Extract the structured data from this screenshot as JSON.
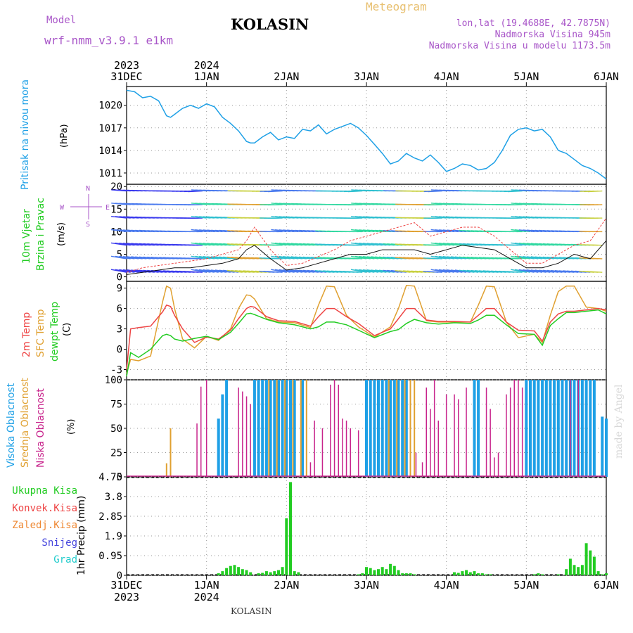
{
  "header": {
    "model_label": "Model",
    "model_name": "wrf-nmm_v3.9.1  e1km",
    "station": "KOLASIN",
    "product": "Meteogram",
    "lonlat": "lon,lat (19.4688E, 42.7875N)",
    "altitude": "Nadmorska Visina 945m",
    "model_altitude": "Nadmorska Visina u modelu 1173.5m",
    "credit": "made by Angel",
    "footer_station": "KOLASIN"
  },
  "colors": {
    "pressure": "#1ea0e6",
    "temp2m": "#ee4444",
    "sfc_temp": "#e0a030",
    "dewpt": "#22cc22",
    "cloud_high": "#1ea0e6",
    "cloud_mid": "#e0a030",
    "cloud_low": "#c8248c",
    "precip": "#22cc22",
    "wind_label": "#22cc22"
  },
  "time_axis": {
    "top": [
      {
        "day": "31DEC",
        "year": "2023"
      },
      {
        "day": "1JAN",
        "year": "2024"
      },
      {
        "day": "2JAN",
        "year": ""
      },
      {
        "day": "3JAN",
        "year": ""
      },
      {
        "day": "4JAN",
        "year": ""
      },
      {
        "day": "5JAN",
        "year": ""
      },
      {
        "day": "6JAN",
        "year": ""
      }
    ]
  },
  "panels": {
    "pressure": {
      "label": "Pritisak na nivou mora",
      "unit": "(hPa)"
    },
    "wind": {
      "label1": "10m Vjetar",
      "label2": "Brzina i Pravac",
      "unit": "(m/s)",
      "compass_n": "N",
      "compass_s": "S",
      "compass_w": "W",
      "compass_e": "E"
    },
    "temp": {
      "label1": "2m Temp",
      "label2": "SFC Temp",
      "label3": "dewpt Temp",
      "unit": "(C)"
    },
    "cloud": {
      "label1": "Visoka Oblacnost",
      "label2": "Srednja Oblacnost",
      "label3": "Niska Oblacnost",
      "unit": "(%)"
    },
    "precip": {
      "legend": [
        "Ukupna Kisa",
        "Konvek.Kisa",
        "Zaledj.Kisa",
        "Snijeg",
        "Grad"
      ],
      "legend_colors": [
        "#22cc22",
        "#ee4444",
        "#ee8833",
        "#4444dd",
        "#22cccc"
      ],
      "unit": "1hr Precip (mm)"
    }
  },
  "chart_data": [
    {
      "type": "line",
      "name": "pressure",
      "x_unit": "days since 31DEC 00UTC",
      "ylim": [
        1009.5,
        1022.5
      ],
      "yticks": [
        "1011",
        "1014",
        "1017",
        "1020"
      ],
      "x": [
        0,
        0.1,
        0.2,
        0.3,
        0.4,
        0.5,
        0.55,
        0.6,
        0.7,
        0.8,
        0.9,
        1.0,
        1.1,
        1.2,
        1.3,
        1.4,
        1.5,
        1.55,
        1.6,
        1.7,
        1.8,
        1.9,
        2.0,
        2.1,
        2.2,
        2.3,
        2.4,
        2.5,
        2.6,
        2.7,
        2.8,
        2.9,
        3.0,
        3.1,
        3.2,
        3.3,
        3.4,
        3.5,
        3.6,
        3.7,
        3.8,
        3.9,
        4.0,
        4.1,
        4.2,
        4.3,
        4.4,
        4.5,
        4.6,
        4.7,
        4.8,
        4.9,
        5.0,
        5.1,
        5.2,
        5.3,
        5.4,
        5.5,
        5.6,
        5.7,
        5.8,
        5.9,
        6.0
      ],
      "series": [
        {
          "name": "pressure",
          "values": [
            1022,
            1021.8,
            1021,
            1021.2,
            1020.6,
            1018.6,
            1018.4,
            1018.8,
            1019.6,
            1020,
            1019.6,
            1020.2,
            1019.8,
            1018.4,
            1017.6,
            1016.6,
            1015.2,
            1015,
            1015,
            1015.8,
            1016.4,
            1015.4,
            1015.8,
            1015.6,
            1016.8,
            1016.6,
            1017.4,
            1016.2,
            1016.8,
            1017.2,
            1017.6,
            1017,
            1016,
            1014.8,
            1013.6,
            1012.2,
            1012.6,
            1013.6,
            1013,
            1012.6,
            1013.4,
            1012.4,
            1011.2,
            1011.6,
            1012.2,
            1012,
            1011.4,
            1011.6,
            1012.4,
            1014,
            1016,
            1016.8,
            1017,
            1016.6,
            1016.8,
            1015.8,
            1014,
            1013.6,
            1012.8,
            1012,
            1011.6,
            1011,
            1010.2
          ]
        }
      ]
    },
    {
      "type": "line",
      "name": "wind",
      "x_unit": "days since 31DEC 00UTC",
      "ylim": [
        -1,
        20.5
      ],
      "yticks": [
        "0",
        "5",
        "10",
        "15",
        "20"
      ],
      "x": [
        0,
        0.2,
        0.4,
        0.6,
        0.8,
        1.0,
        1.2,
        1.4,
        1.5,
        1.6,
        1.8,
        2.0,
        2.2,
        2.4,
        2.6,
        2.8,
        3.0,
        3.2,
        3.4,
        3.6,
        3.8,
        4.0,
        4.2,
        4.4,
        4.6,
        4.8,
        5.0,
        5.2,
        5.4,
        5.6,
        5.8,
        6.0
      ],
      "series": [
        {
          "name": "mean",
          "values": [
            0.5,
            1,
            1.5,
            2,
            2,
            2.5,
            3,
            4,
            6,
            7,
            4,
            1.5,
            2,
            3,
            4,
            5,
            5,
            6,
            6,
            6,
            5,
            6,
            7,
            6.5,
            6,
            4,
            2,
            2,
            3,
            5,
            4,
            8
          ]
        },
        {
          "name": "gust",
          "values": [
            1,
            2,
            2.5,
            3,
            3.5,
            4,
            5,
            6,
            8,
            11,
            6,
            2.5,
            3,
            4.5,
            6,
            8,
            9,
            10,
            11,
            12,
            9,
            10,
            11,
            11,
            9,
            6,
            3,
            3,
            5,
            7,
            8,
            13
          ]
        }
      ]
    },
    {
      "type": "line",
      "name": "temperature",
      "x_unit": "days since 31DEC 00UTC",
      "ylim": [
        -4.5,
        10
      ],
      "yticks": [
        "-3",
        "0",
        "3",
        "6",
        "9"
      ],
      "x": [
        0,
        0.05,
        0.15,
        0.3,
        0.45,
        0.5,
        0.55,
        0.6,
        0.7,
        0.85,
        1.0,
        1.15,
        1.3,
        1.4,
        1.5,
        1.55,
        1.6,
        1.75,
        1.9,
        2.1,
        2.3,
        2.4,
        2.5,
        2.6,
        2.75,
        2.9,
        3.1,
        3.3,
        3.4,
        3.5,
        3.6,
        3.75,
        3.9,
        4.1,
        4.3,
        4.4,
        4.5,
        4.6,
        4.75,
        4.9,
        5.1,
        5.2,
        5.3,
        5.4,
        5.5,
        5.6,
        5.75,
        5.9,
        6.0
      ],
      "series": [
        {
          "name": "2m Temp",
          "values": [
            -3,
            3,
            3.2,
            3.4,
            5.5,
            6.5,
            6.3,
            5,
            3,
            1,
            1.8,
            1.5,
            2.8,
            4.5,
            6,
            6.3,
            6.2,
            4.8,
            4.2,
            4.1,
            3.4,
            4.8,
            6,
            6,
            4.8,
            3.8,
            2,
            3,
            4.5,
            6,
            6,
            4.3,
            4.1,
            4.1,
            4,
            5,
            6,
            6,
            4,
            2.8,
            2.7,
            1.2,
            4,
            5.2,
            5.6,
            5.6,
            5.8,
            6,
            5.8
          ]
        },
        {
          "name": "SFC Temp",
          "values": [
            -3.6,
            -1.5,
            -1.7,
            -1,
            7,
            9.3,
            9,
            6,
            1.5,
            0.2,
            1.9,
            1.3,
            3,
            6,
            8,
            7.9,
            7.4,
            4.5,
            4,
            3.9,
            3.2,
            6.5,
            9.3,
            9.2,
            5,
            3.3,
            1.8,
            3.3,
            6,
            9.4,
            9.3,
            4.2,
            4,
            4,
            4,
            6.5,
            9.3,
            9.2,
            4,
            1.7,
            2.2,
            1,
            5,
            8.5,
            9.3,
            9.3,
            6.2,
            6,
            5.6
          ]
        },
        {
          "name": "dewpt Temp",
          "values": [
            -4,
            -0.5,
            -1.2,
            0,
            2,
            2.2,
            2,
            1.5,
            1.2,
            1.6,
            1.9,
            1.4,
            2.5,
            3.8,
            5.2,
            5.3,
            5.1,
            4.4,
            3.9,
            3.6,
            3,
            3.3,
            4,
            4,
            3.6,
            2.8,
            1.7,
            2.6,
            2.9,
            3.8,
            4.4,
            3.9,
            3.7,
            3.9,
            3.8,
            4.3,
            5,
            5,
            3.6,
            2.3,
            2.2,
            0.6,
            3.5,
            4.5,
            5.4,
            5.4,
            5.6,
            5.8,
            5.2
          ]
        }
      ]
    },
    {
      "type": "bar",
      "name": "cloud cover",
      "x_unit": "days since 31DEC 00UTC",
      "ylim": [
        0,
        100
      ],
      "yticks": [
        "0",
        "25",
        "50",
        "75",
        "100"
      ],
      "series": [
        {
          "name": "Visoka Oblacnost",
          "x": [
            1.15,
            1.2,
            1.25,
            1.6,
            1.65,
            1.7,
            1.75,
            1.8,
            1.85,
            1.9,
            1.95,
            2.0,
            2.05,
            2.1,
            2.2,
            3.0,
            3.05,
            3.1,
            3.15,
            3.2,
            3.25,
            3.3,
            3.35,
            3.4,
            3.45,
            3.5,
            4.35,
            4.4,
            5.0,
            5.05,
            5.1,
            5.15,
            5.2,
            5.25,
            5.3,
            5.35,
            5.4,
            5.45,
            5.5,
            5.55,
            5.6,
            5.65,
            5.7,
            5.75,
            5.8,
            5.85,
            5.95,
            6.0
          ],
          "values": [
            60,
            85,
            100,
            100,
            100,
            100,
            100,
            100,
            100,
            100,
            100,
            100,
            100,
            100,
            100,
            100,
            100,
            100,
            100,
            100,
            100,
            100,
            100,
            100,
            100,
            100,
            100,
            100,
            100,
            100,
            100,
            100,
            100,
            100,
            100,
            100,
            100,
            100,
            100,
            100,
            100,
            100,
            100,
            100,
            100,
            100,
            62,
            60
          ]
        },
        {
          "name": "Srednja Oblacnost",
          "x": [
            0.5,
            0.55,
            1.78,
            1.88,
            1.98,
            2.08,
            2.18,
            2.25,
            3.28,
            3.38,
            3.48,
            3.55,
            3.6
          ],
          "values": [
            14,
            50,
            100,
            100,
            100,
            100,
            100,
            100,
            100,
            100,
            100,
            100,
            100
          ]
        },
        {
          "name": "Niska Oblacnost",
          "x": [
            0.88,
            0.93,
            1.0,
            1.4,
            1.45,
            1.5,
            1.55,
            2.3,
            2.35,
            2.45,
            2.55,
            2.6,
            2.65,
            2.7,
            2.75,
            2.8,
            2.9,
            3.62,
            3.7,
            3.75,
            3.8,
            3.85,
            3.9,
            4.0,
            4.1,
            4.15,
            4.25,
            4.5,
            4.55,
            4.6,
            4.65,
            4.75,
            4.8,
            4.85,
            4.9,
            4.95,
            5.55,
            5.65
          ],
          "values": [
            55,
            93,
            100,
            92,
            88,
            83,
            75,
            15,
            58,
            50,
            95,
            100,
            95,
            60,
            58,
            50,
            48,
            25,
            15,
            92,
            70,
            100,
            58,
            85,
            85,
            80,
            92,
            92,
            70,
            20,
            25,
            85,
            92,
            100,
            100,
            92,
            100,
            100
          ]
        }
      ]
    },
    {
      "type": "bar",
      "name": "precipitation",
      "x_unit": "days since 31DEC 00UTC",
      "ylim": [
        0,
        4.75
      ],
      "yticks": [
        "0",
        "0.95",
        "1.9",
        "2.85",
        "3.8",
        "4.75"
      ],
      "series": [
        {
          "name": "Ukupna Kisa",
          "x": [
            1.15,
            1.2,
            1.25,
            1.3,
            1.35,
            1.4,
            1.45,
            1.5,
            1.55,
            1.65,
            1.7,
            1.75,
            1.8,
            1.85,
            1.9,
            1.95,
            2.0,
            2.05,
            2.1,
            2.15,
            2.9,
            2.95,
            3.0,
            3.05,
            3.1,
            3.15,
            3.2,
            3.25,
            3.3,
            3.35,
            3.4,
            3.45,
            3.5,
            3.55,
            3.6,
            4.1,
            4.15,
            4.2,
            4.25,
            4.3,
            4.35,
            4.4,
            4.45,
            4.5,
            4.55,
            5.1,
            5.15,
            5.2,
            5.4,
            5.5,
            5.55,
            5.6,
            5.65,
            5.7,
            5.75,
            5.8,
            5.85,
            5.9,
            5.95,
            6.0
          ],
          "values": [
            0.1,
            0.2,
            0.35,
            0.45,
            0.5,
            0.4,
            0.3,
            0.25,
            0.15,
            0.1,
            0.12,
            0.2,
            0.15,
            0.2,
            0.25,
            0.4,
            2.75,
            4.5,
            0.2,
            0.15,
            0.05,
            0.1,
            0.4,
            0.35,
            0.25,
            0.3,
            0.4,
            0.3,
            0.55,
            0.45,
            0.25,
            0.1,
            0.1,
            0.1,
            0.05,
            0.15,
            0.12,
            0.2,
            0.25,
            0.15,
            0.2,
            0.1,
            0.1,
            0.05,
            0.05,
            0.05,
            0.1,
            0.05,
            0.05,
            0.3,
            0.8,
            0.5,
            0.4,
            0.5,
            1.55,
            1.2,
            0.9,
            0.2,
            0.05,
            0.1
          ]
        }
      ]
    }
  ]
}
